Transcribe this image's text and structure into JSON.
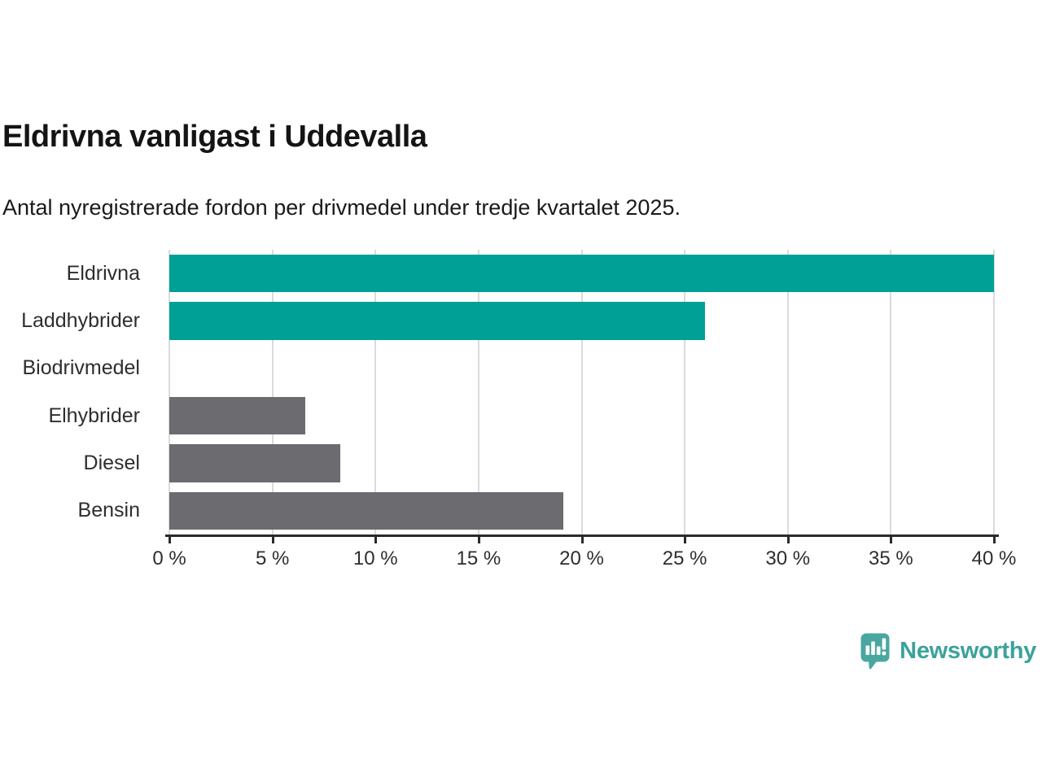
{
  "header": {
    "title": "Eldrivna vanligast i Uddevalla",
    "subtitle": "Antal nyregistrerade fordon per drivmedel under tredje kvartalet 2025."
  },
  "chart_data": {
    "type": "bar",
    "orientation": "horizontal",
    "title": "Eldrivna vanligast i Uddevalla",
    "subtitle": "Antal nyregistrerade fordon per drivmedel under tredje kvartalet 2025.",
    "categories": [
      "Eldrivna",
      "Laddhybrider",
      "Biodrivmedel",
      "Elhybrider",
      "Diesel",
      "Bensin"
    ],
    "values": [
      40.0,
      26.0,
      0,
      6.6,
      8.3,
      19.1
    ],
    "unit": "%",
    "xlim": [
      0,
      40
    ],
    "tick_step": 5,
    "tick_labels": [
      "0 %",
      "5 %",
      "10 %",
      "15 %",
      "20 %",
      "25 %",
      "30 %",
      "35 %",
      "40 %"
    ],
    "grid": true,
    "legend": "none",
    "bar_colors": [
      "#00a097",
      "#00a097",
      "#6b6b70",
      "#6b6b70",
      "#6b6b70",
      "#6b6b70"
    ],
    "highlight_color": "#00a097",
    "default_color": "#6b6b70",
    "gridline_color": "#dbdbdb",
    "axis_color": "#2b2b2b"
  },
  "footer": {
    "brand": "Newsworthy",
    "brand_color": "#3ba29b",
    "icon": "newsworthy-speech-bubble-bar-chart-icon",
    "icon_color": "#4aa7a0"
  }
}
